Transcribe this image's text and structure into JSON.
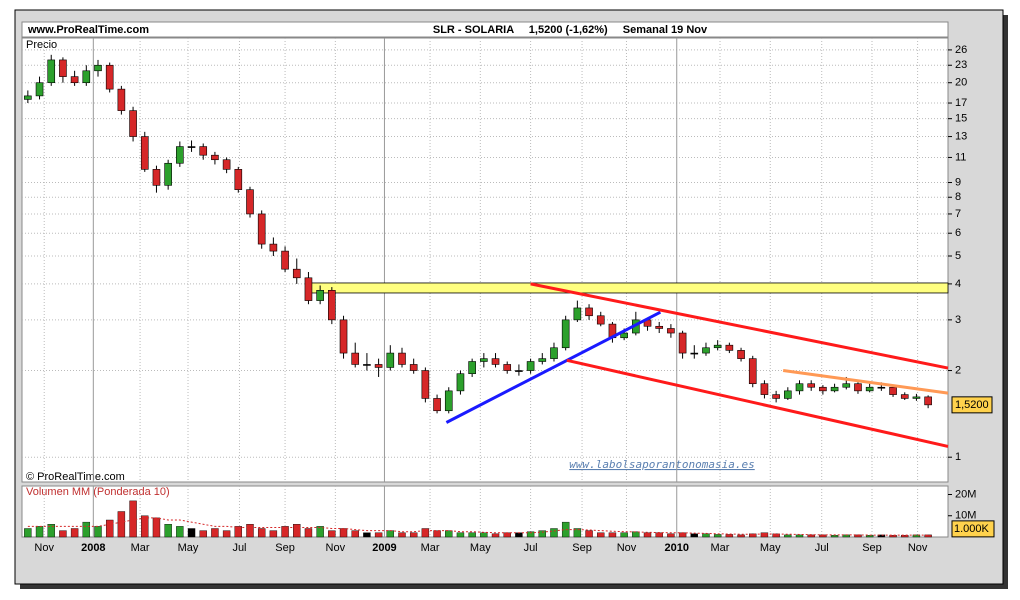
{
  "chart_data": {
    "type": "candlestick",
    "site": "www.ProRealTime.com",
    "title": "SLR - SOLARIA",
    "subtitle": "1,5200 (-1,62%)",
    "period": "Semanal  19 Nov",
    "price_label": "Precio",
    "copyright": "© ProRealTime.com",
    "watermark": "www.labolsaporantonomasia.es",
    "log_scale": true,
    "grid": true,
    "up_color": "#2ca02c",
    "down_color": "#d62728",
    "xlim": [
      -0.5,
      78.7
    ],
    "ylim": [
      0.82,
      28.6
    ],
    "yticks": [
      26,
      23,
      20,
      17,
      15,
      13,
      11,
      9,
      8,
      7,
      6,
      5,
      4,
      3,
      2,
      1
    ],
    "xticks": [
      {
        "value": 1.4,
        "label": "Nov"
      },
      {
        "value": 5.6,
        "label": "2008",
        "bold": true
      },
      {
        "value": 9.6,
        "label": "Mar"
      },
      {
        "value": 13.7,
        "label": "May"
      },
      {
        "value": 18.1,
        "label": "Jul"
      },
      {
        "value": 22.0,
        "label": "Sep"
      },
      {
        "value": 26.3,
        "label": "Nov"
      },
      {
        "value": 30.5,
        "label": "2009",
        "bold": true
      },
      {
        "value": 34.4,
        "label": "Mar"
      },
      {
        "value": 38.7,
        "label": "May"
      },
      {
        "value": 43.0,
        "label": "Jul"
      },
      {
        "value": 47.4,
        "label": "Sep"
      },
      {
        "value": 51.2,
        "label": "Nov"
      },
      {
        "value": 55.5,
        "label": "2010",
        "bold": true
      },
      {
        "value": 59.2,
        "label": "Mar"
      },
      {
        "value": 63.5,
        "label": "May"
      },
      {
        "value": 67.9,
        "label": "Jul"
      },
      {
        "value": 72.2,
        "label": "Sep"
      },
      {
        "value": 76.1,
        "label": "Nov"
      }
    ],
    "open": [
      17.5,
      18,
      20,
      24,
      21,
      20,
      22,
      23,
      19,
      16,
      13,
      10,
      8.8,
      10.5,
      12,
      12,
      11.2,
      10.8,
      10,
      8.5,
      7,
      5.5,
      5.2,
      4.5,
      4.2,
      3.5,
      3.8,
      3.0,
      2.3,
      2.1,
      2.1,
      2.05,
      2.3,
      2.1,
      2.0,
      1.6,
      1.45,
      1.7,
      1.95,
      2.15,
      2.2,
      2.1,
      2.0,
      2.0,
      2.15,
      2.2,
      2.4,
      3.0,
      3.3,
      3.1,
      2.9,
      2.6,
      2.7,
      3.0,
      2.85,
      2.8,
      2.7,
      2.3,
      2.3,
      2.4,
      2.45,
      2.35,
      2.2,
      1.8,
      1.65,
      1.6,
      1.7,
      1.8,
      1.75,
      1.7,
      1.75,
      1.8,
      1.7,
      1.75,
      1.75,
      1.65,
      1.6,
      1.62
    ],
    "high": [
      18.8,
      21,
      25,
      24.5,
      22,
      23,
      24,
      23.5,
      19.5,
      16.5,
      13.5,
      10.3,
      10.8,
      12.5,
      12.6,
      12.3,
      11.5,
      11,
      10.2,
      8.7,
      7.2,
      5.8,
      5.4,
      4.9,
      4.4,
      3.95,
      3.9,
      3.1,
      2.5,
      2.3,
      2.2,
      2.45,
      2.4,
      2.2,
      2.05,
      1.65,
      1.75,
      2.0,
      2.2,
      2.3,
      2.3,
      2.15,
      2.1,
      2.2,
      2.3,
      2.5,
      3.1,
      3.5,
      3.4,
      3.2,
      2.95,
      2.8,
      3.2,
      3.05,
      2.95,
      2.9,
      2.75,
      2.45,
      2.5,
      2.55,
      2.5,
      2.4,
      2.25,
      1.85,
      1.7,
      1.75,
      1.85,
      1.85,
      1.78,
      1.8,
      1.9,
      1.82,
      1.8,
      1.82,
      1.78,
      1.68,
      1.66,
      1.64
    ],
    "low": [
      17.0,
      17.5,
      19.5,
      20,
      19.5,
      19.5,
      21,
      18.5,
      15.5,
      12.5,
      9.8,
      8.3,
      8.5,
      10.2,
      11.5,
      10.8,
      10.4,
      9.7,
      8.3,
      6.8,
      5.3,
      5.0,
      4.4,
      4.0,
      3.4,
      3.4,
      2.9,
      2.2,
      2.05,
      2.0,
      1.9,
      2.0,
      2.05,
      1.95,
      1.55,
      1.42,
      1.42,
      1.65,
      1.9,
      2.05,
      2.05,
      1.95,
      1.92,
      1.95,
      2.1,
      2.15,
      2.35,
      2.95,
      3.0,
      2.85,
      2.5,
      2.55,
      2.65,
      2.75,
      2.7,
      2.6,
      2.2,
      2.2,
      2.25,
      2.35,
      2.3,
      2.15,
      1.75,
      1.6,
      1.55,
      1.58,
      1.65,
      1.7,
      1.65,
      1.68,
      1.72,
      1.66,
      1.68,
      1.7,
      1.62,
      1.58,
      1.57,
      1.48
    ],
    "close": [
      18,
      20,
      24,
      21,
      20,
      22,
      23,
      19,
      16,
      13,
      10,
      8.8,
      10.5,
      12,
      12,
      11.2,
      10.8,
      10,
      8.5,
      7,
      5.5,
      5.2,
      4.5,
      4.2,
      3.5,
      3.8,
      3.0,
      2.3,
      2.1,
      2.1,
      2.05,
      2.3,
      2.1,
      2.0,
      1.6,
      1.45,
      1.7,
      1.95,
      2.15,
      2.2,
      2.1,
      2.0,
      2.0,
      2.15,
      2.2,
      2.4,
      3.0,
      3.3,
      3.1,
      2.9,
      2.6,
      2.7,
      3.0,
      2.85,
      2.8,
      2.7,
      2.3,
      2.3,
      2.4,
      2.45,
      2.35,
      2.2,
      1.8,
      1.65,
      1.6,
      1.7,
      1.8,
      1.75,
      1.7,
      1.75,
      1.8,
      1.7,
      1.75,
      1.75,
      1.65,
      1.6,
      1.62,
      1.52
    ],
    "price_tag": {
      "value": 1.52,
      "label": "1,5200"
    },
    "drawings": [
      {
        "kind": "band",
        "color": "#ffff80",
        "x": [
          24.0,
          78.7
        ],
        "y": [
          3.72,
          4.03
        ]
      },
      {
        "kind": "line",
        "color": "#1a1aff",
        "x": [
          35.8,
          54.1
        ],
        "y": [
          1.32,
          3.19
        ]
      },
      {
        "kind": "line",
        "color": "#ff1a1a",
        "x": [
          43.0,
          78.7
        ],
        "y": [
          4.0,
          2.04
        ]
      },
      {
        "kind": "line",
        "color": "#ff1a1a",
        "x": [
          46.1,
          78.7
        ],
        "y": [
          2.17,
          1.09
        ]
      },
      {
        "kind": "line",
        "color": "#ff9955",
        "x": [
          64.6,
          78.7
        ],
        "y": [
          2.0,
          1.67
        ]
      }
    ],
    "volume": {
      "name": "Volumen MM (Ponderada 10)",
      "ylim": [
        0,
        24
      ],
      "yticks": [
        {
          "value": 20,
          "label": "20M"
        },
        {
          "value": 10,
          "label": "10M"
        }
      ],
      "values": [
        4,
        5,
        6,
        3,
        4,
        7,
        5,
        8,
        12,
        17,
        10,
        9,
        6,
        5,
        4,
        3,
        4,
        3,
        5,
        6,
        4,
        3,
        5,
        6,
        4,
        5,
        3,
        4,
        3,
        2,
        2,
        3,
        2,
        2,
        4,
        3,
        3,
        2,
        2,
        2,
        1.5,
        2,
        2,
        2.5,
        3,
        4,
        7,
        4,
        3,
        2,
        2,
        2,
        2.5,
        2,
        2,
        1.5,
        2,
        1.5,
        1.5,
        1.2,
        1.2,
        1,
        1.5,
        2,
        1.5,
        1,
        1,
        1,
        1,
        0.8,
        1,
        1,
        0.8,
        1,
        0.8,
        0.8,
        1,
        1
      ],
      "ma": [
        5,
        5,
        5,
        5,
        5,
        5,
        5,
        6,
        7,
        8,
        9,
        9,
        8,
        8,
        7,
        6,
        5,
        5,
        4.5,
        4.5,
        4.5,
        4.5,
        4.5,
        4.5,
        4.5,
        4.5,
        4,
        4,
        3.5,
        3,
        3,
        3,
        2.5,
        2.5,
        3,
        3,
        3,
        2.5,
        2.5,
        2.2,
        2,
        2,
        2,
        2,
        2.3,
        2.8,
        3.5,
        3.5,
        3.3,
        3,
        2.7,
        2.5,
        2.4,
        2.2,
        2.1,
        2,
        2,
        1.8,
        1.7,
        1.5,
        1.4,
        1.3,
        1.3,
        1.4,
        1.4,
        1.3,
        1.2,
        1.1,
        1,
        1,
        1,
        1,
        0.9,
        0.9,
        0.9,
        0.9,
        0.9,
        0.9
      ],
      "ma_color": "#d62728",
      "tag": {
        "value": 1,
        "label": "1.000K"
      }
    }
  }
}
